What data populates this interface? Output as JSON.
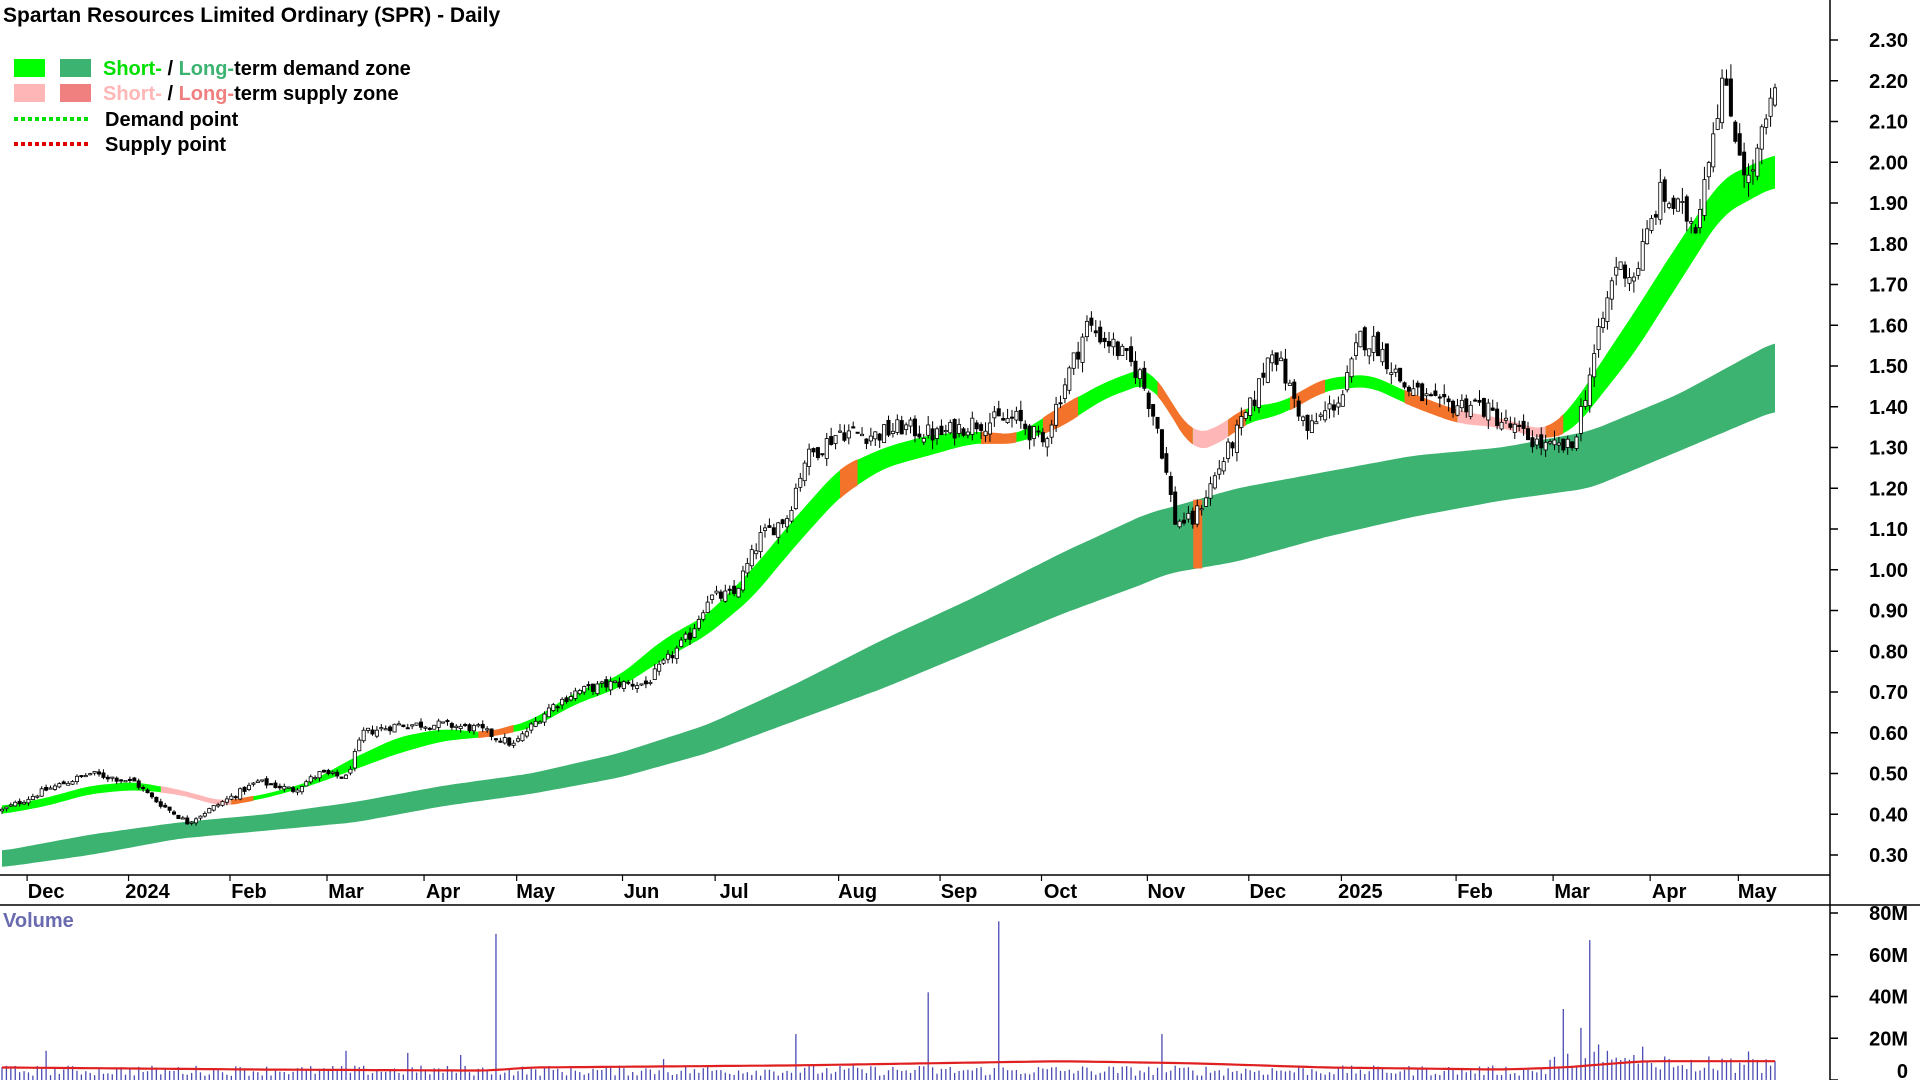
{
  "chart_data": {
    "type": "candlestick",
    "title": "Spartan Resources Limited Ordinary (SPR) - Daily",
    "legend": {
      "placement": "top-left",
      "items": [
        {
          "prefix": "Short-",
          "sep": " / ",
          "mid": "Long-",
          "suffix": "term demand zone",
          "short_color": "#00ff00",
          "long_color": "#3cb371"
        },
        {
          "prefix": "Short-",
          "sep": " / ",
          "mid": "Long-",
          "suffix": "term supply zone",
          "short_color": "#ffb6b6",
          "long_color": "#f08080"
        },
        {
          "label": "Demand point",
          "color": "#00e000"
        },
        {
          "label": "Supply point",
          "color": "#e00000"
        }
      ]
    },
    "price_axis": {
      "min": 0.25,
      "max": 2.33,
      "ticks": [
        "2.30",
        "2.20",
        "2.10",
        "2.00",
        "1.90",
        "1.80",
        "1.70",
        "1.60",
        "1.50",
        "1.40",
        "1.30",
        "1.20",
        "1.10",
        "1.00",
        "0.90",
        "0.80",
        "0.70",
        "0.60",
        "0.50",
        "0.40",
        "0.30"
      ]
    },
    "time_axis": {
      "labels": [
        "Dec",
        "2024",
        "Feb",
        "Mar",
        "Apr",
        "May",
        "Jun",
        "Jul",
        "Aug",
        "Sep",
        "Oct",
        "Nov",
        "Dec",
        "2025",
        "Feb",
        "Mar",
        "Apr",
        "May"
      ],
      "label_days": [
        10,
        33,
        56,
        78,
        100,
        121,
        145,
        166,
        194,
        217,
        240,
        264,
        287,
        308,
        334,
        356,
        378,
        398
      ]
    },
    "volume_axis": {
      "title": "Volume",
      "min": 0,
      "max": 80,
      "ticks": [
        "80M",
        "60M",
        "40M",
        "20M",
        "0"
      ]
    },
    "price_anchors": {
      "day": [
        0,
        10,
        20,
        30,
        34,
        42,
        50,
        58,
        66,
        72,
        78,
        82,
        90,
        100,
        108,
        116,
        124,
        130,
        138,
        146,
        156,
        160,
        166,
        172,
        178,
        182,
        190,
        198,
        204,
        212,
        220,
        230,
        236,
        240,
        246,
        252,
        258,
        262,
        266,
        270,
        276,
        284,
        288,
        296,
        304,
        308,
        312,
        318,
        326,
        334,
        342,
        350,
        356,
        360,
        366,
        370,
        376,
        384,
        390,
        396,
        402
      ],
      "close": [
        0.41,
        0.46,
        0.5,
        0.48,
        0.44,
        0.38,
        0.43,
        0.48,
        0.46,
        0.5,
        0.49,
        0.6,
        0.62,
        0.62,
        0.61,
        0.57,
        0.66,
        0.7,
        0.72,
        0.72,
        0.84,
        0.93,
        0.94,
        1.08,
        1.13,
        1.27,
        1.34,
        1.33,
        1.35,
        1.33,
        1.36,
        1.37,
        1.31,
        1.43,
        1.6,
        1.55,
        1.48,
        1.35,
        1.12,
        1.12,
        1.25,
        1.42,
        1.55,
        1.34,
        1.43,
        1.57,
        1.55,
        1.45,
        1.4,
        1.41,
        1.35,
        1.3,
        1.3,
        1.48,
        1.75,
        1.72,
        1.92,
        1.85,
        2.2,
        1.95,
        2.17
      ]
    },
    "short_term_zone_anchors": {
      "day": [
        0,
        10,
        20,
        30,
        40,
        50,
        60,
        70,
        80,
        90,
        100,
        110,
        120,
        130,
        140,
        150,
        160,
        170,
        180,
        190,
        200,
        210,
        220,
        230,
        240,
        250,
        260,
        264,
        270,
        276,
        282,
        290,
        300,
        310,
        320,
        330,
        340,
        350,
        356,
        362,
        370,
        380,
        390,
        400,
        402
      ],
      "upper": [
        0.42,
        0.44,
        0.47,
        0.48,
        0.46,
        0.43,
        0.45,
        0.48,
        0.54,
        0.59,
        0.61,
        0.6,
        0.63,
        0.7,
        0.74,
        0.83,
        0.89,
        1.0,
        1.13,
        1.25,
        1.3,
        1.33,
        1.34,
        1.33,
        1.4,
        1.46,
        1.5,
        1.43,
        1.33,
        1.35,
        1.4,
        1.41,
        1.47,
        1.48,
        1.43,
        1.39,
        1.37,
        1.34,
        1.4,
        1.5,
        1.63,
        1.8,
        1.96,
        2.01,
        2.02
      ],
      "lower": [
        0.4,
        0.42,
        0.45,
        0.46,
        0.45,
        0.42,
        0.44,
        0.47,
        0.51,
        0.55,
        0.58,
        0.59,
        0.61,
        0.67,
        0.71,
        0.78,
        0.84,
        0.93,
        1.06,
        1.18,
        1.25,
        1.28,
        1.31,
        1.31,
        1.35,
        1.42,
        1.46,
        1.4,
        1.29,
        1.31,
        1.36,
        1.38,
        1.44,
        1.45,
        1.4,
        1.36,
        1.35,
        1.32,
        1.34,
        1.42,
        1.53,
        1.7,
        1.87,
        1.93,
        1.94
      ]
    },
    "long_term_zone_anchors": {
      "day": [
        0,
        20,
        40,
        60,
        80,
        100,
        120,
        140,
        160,
        180,
        200,
        220,
        240,
        260,
        264,
        280,
        300,
        320,
        340,
        360,
        380,
        402
      ],
      "upper": [
        0.31,
        0.35,
        0.38,
        0.4,
        0.43,
        0.47,
        0.5,
        0.55,
        0.62,
        0.72,
        0.83,
        0.93,
        1.04,
        1.14,
        1.15,
        1.2,
        1.24,
        1.28,
        1.3,
        1.34,
        1.43,
        1.56
      ],
      "lower": [
        0.27,
        0.3,
        0.34,
        0.36,
        0.38,
        0.42,
        0.45,
        0.49,
        0.55,
        0.63,
        0.71,
        0.8,
        0.89,
        0.97,
        0.99,
        1.02,
        1.08,
        1.13,
        1.17,
        1.2,
        1.29,
        1.39
      ]
    },
    "supply_segments": [
      {
        "from": 36,
        "to": 52,
        "color": "#ffb6b6"
      },
      {
        "from": 52,
        "to": 57,
        "color": "#f4732a"
      },
      {
        "from": 108,
        "to": 116,
        "color": "#f4732a"
      },
      {
        "from": 190,
        "to": 194,
        "color": "#f4732a"
      },
      {
        "from": 222,
        "to": 230,
        "color": "#f4732a"
      },
      {
        "from": 236,
        "to": 244,
        "color": "#f4732a"
      },
      {
        "from": 262,
        "to": 270,
        "color": "#f4732a"
      },
      {
        "from": 270,
        "to": 278,
        "color": "#ffb6b6"
      },
      {
        "from": 278,
        "to": 282,
        "color": "#f4732a"
      },
      {
        "from": 292,
        "to": 300,
        "color": "#f4732a"
      },
      {
        "from": 318,
        "to": 330,
        "color": "#f4732a"
      },
      {
        "from": 330,
        "to": 350,
        "color": "#ffb6b6"
      },
      {
        "from": 350,
        "to": 354,
        "color": "#f4732a"
      }
    ],
    "long_supply_segments": [
      {
        "from": 270,
        "to": 272,
        "color": "#f4732a"
      }
    ],
    "volume_spikes": [
      {
        "day": 10,
        "value": 14
      },
      {
        "day": 78,
        "value": 14
      },
      {
        "day": 92,
        "value": 13
      },
      {
        "day": 104,
        "value": 12
      },
      {
        "day": 112,
        "value": 70
      },
      {
        "day": 150,
        "value": 10
      },
      {
        "day": 180,
        "value": 22
      },
      {
        "day": 210,
        "value": 42
      },
      {
        "day": 226,
        "value": 76
      },
      {
        "day": 263,
        "value": 22
      },
      {
        "day": 354,
        "value": 34
      },
      {
        "day": 358,
        "value": 25
      },
      {
        "day": 360,
        "value": 67
      },
      {
        "day": 362,
        "value": 17
      },
      {
        "day": 364,
        "value": 14
      },
      {
        "day": 370,
        "value": 12
      },
      {
        "day": 372,
        "value": 16
      }
    ],
    "volume_avg_anchors": {
      "day": [
        0,
        60,
        110,
        120,
        180,
        240,
        270,
        300,
        340,
        354,
        372,
        402
      ],
      "value": [
        6,
        5,
        4.5,
        6,
        7,
        9,
        8,
        6,
        5,
        6,
        9,
        9
      ]
    },
    "colors": {
      "short_demand": "#00ff00",
      "long_demand": "#3cb371",
      "short_supply": "#ffb6b6",
      "long_supply": "#f08080",
      "supply_point_marker": "#f4732a",
      "volume_bar": "#4b4bb4",
      "volume_average": "#e02020",
      "volume_title": "#6a6ab0"
    }
  }
}
